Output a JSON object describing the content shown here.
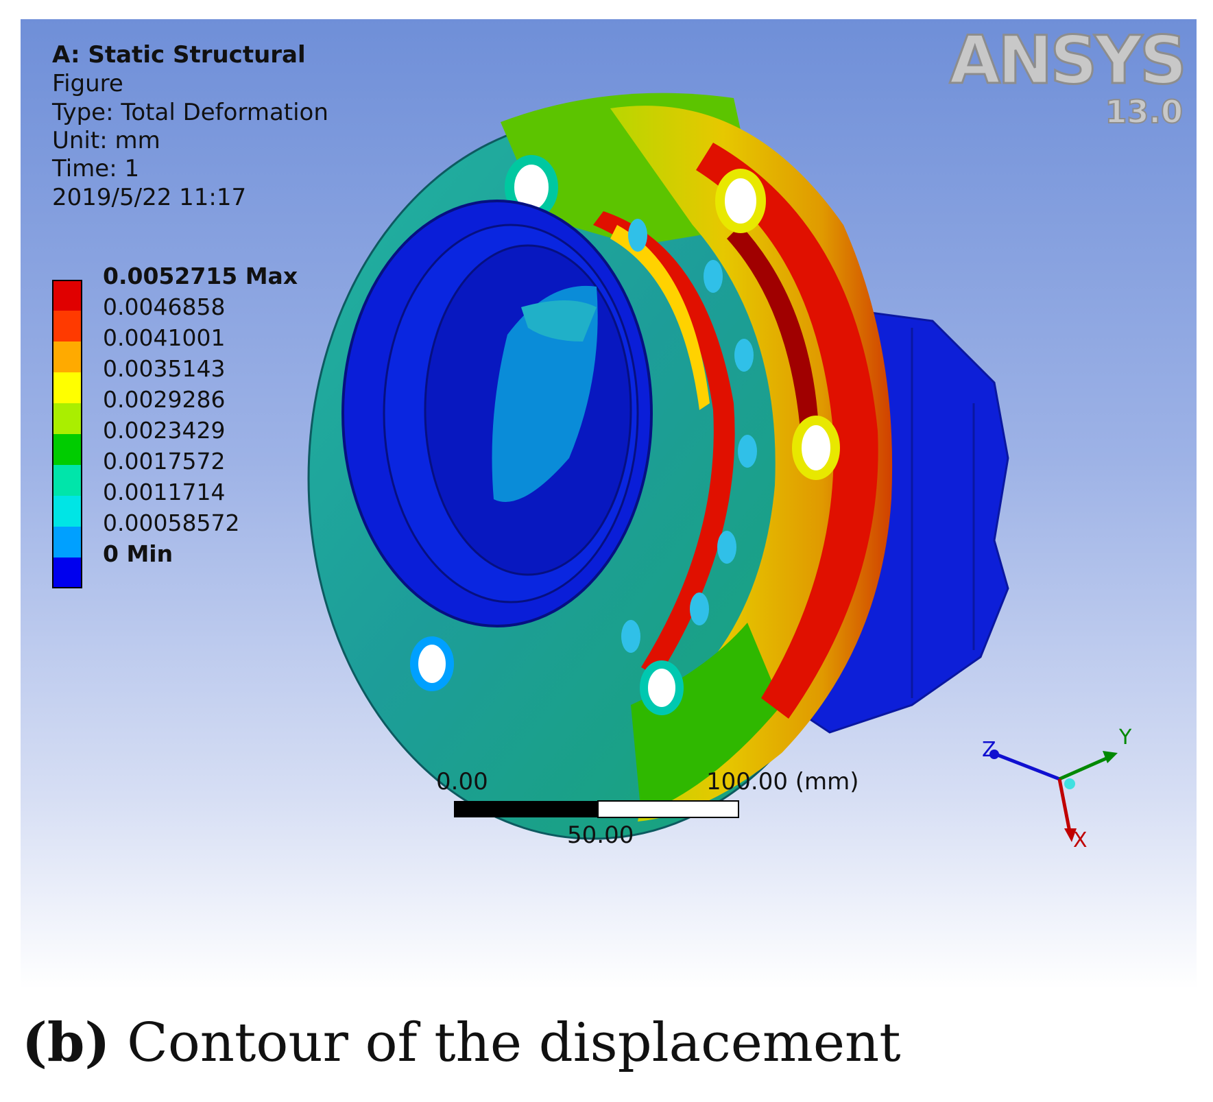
{
  "info": {
    "title": "A: Static Structural",
    "figure": "Figure",
    "type": "Type: Total Deformation",
    "unit": "Unit: mm",
    "time": "Time: 1",
    "timestamp": "2019/5/22 11:17"
  },
  "legend": {
    "entries": [
      {
        "label": "0.0052715 Max",
        "color": "#e00000",
        "bold": true
      },
      {
        "label": "0.0046858",
        "color": "#ff3a00",
        "bold": false
      },
      {
        "label": "0.0041001",
        "color": "#ffaa00",
        "bold": false
      },
      {
        "label": "0.0035143",
        "color": "#ffff00",
        "bold": false
      },
      {
        "label": "0.0029286",
        "color": "#aaee00",
        "bold": false
      },
      {
        "label": "0.0023429",
        "color": "#00cc00",
        "bold": false
      },
      {
        "label": "0.0017572",
        "color": "#00e5aa",
        "bold": false
      },
      {
        "label": "0.0011714",
        "color": "#00e5e5",
        "bold": false
      },
      {
        "label": "0.00058572",
        "color": "#00a0ff",
        "bold": false
      },
      {
        "label": "0 Min",
        "color": "#0000ee",
        "bold": true
      }
    ]
  },
  "logo": {
    "brand": "ANSYS",
    "version": "13.0"
  },
  "scale": {
    "left": "0.00",
    "right": "100.00 (mm)",
    "middle": "50.00"
  },
  "axes": {
    "x": "X",
    "y": "Y",
    "z": "Z"
  },
  "caption": {
    "letter": "(b)",
    "text": " Contour of the displacement"
  }
}
